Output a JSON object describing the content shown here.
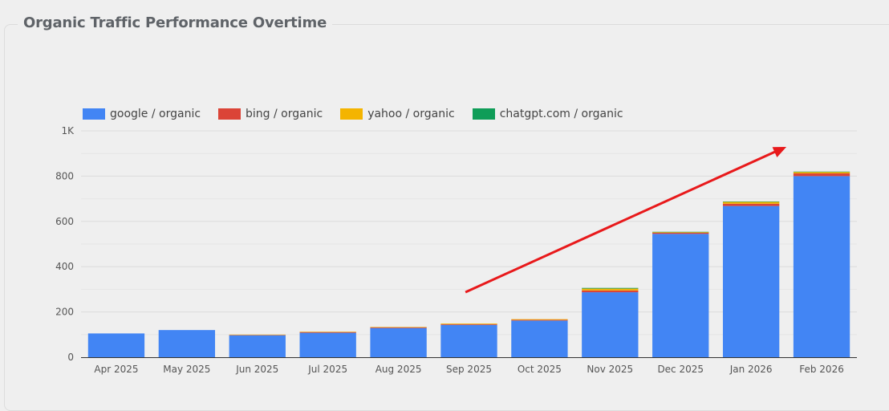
{
  "title": "Organic Traffic Performance Overtime",
  "chart_data": {
    "type": "bar",
    "stacked": true,
    "categories": [
      "Apr 2025",
      "May 2025",
      "Jun 2025",
      "Jul 2025",
      "Aug 2025",
      "Sep 2025",
      "Oct 2025",
      "Nov 2025",
      "Dec 2025",
      "Jan 2026",
      "Feb 2026"
    ],
    "series": [
      {
        "name": "google / organic",
        "color": "#4285f4",
        "values": [
          105,
          120,
          97,
          108,
          129,
          143,
          162,
          287,
          545,
          668,
          800
        ]
      },
      {
        "name": "bing / organic",
        "color": "#db4437",
        "values": [
          0,
          0,
          2,
          3,
          3,
          3,
          3,
          8,
          5,
          10,
          12
        ]
      },
      {
        "name": "yahoo / organic",
        "color": "#f4b400",
        "values": [
          0,
          0,
          1,
          2,
          2,
          3,
          3,
          8,
          3,
          8,
          6
        ]
      },
      {
        "name": "chatgpt.com / organic",
        "color": "#0f9d58",
        "values": [
          0,
          0,
          0,
          0,
          0,
          0,
          0,
          3,
          1,
          2,
          2
        ]
      }
    ],
    "yticks": [
      "0",
      "200",
      "400",
      "600",
      "800",
      "1K"
    ],
    "ylim": [
      0,
      1000
    ],
    "grid": true,
    "legend_position": "top-left",
    "annotation": "red trend arrow rising from Sep 2025 to Feb 2026"
  }
}
